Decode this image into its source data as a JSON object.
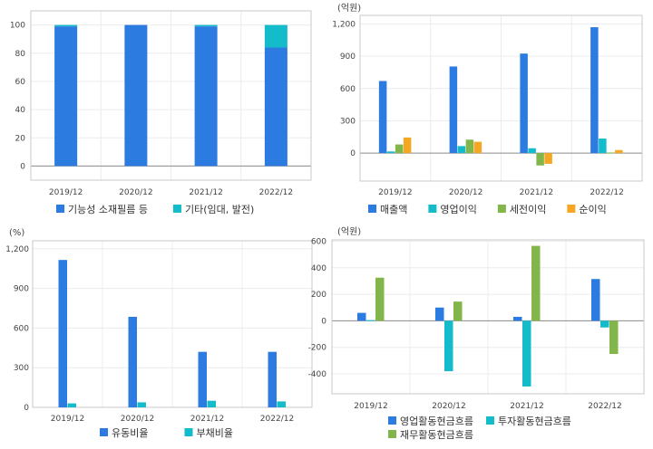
{
  "colors": {
    "blue": "#2b7be0",
    "teal": "#14bccb",
    "green": "#82b64a",
    "orange": "#f5a623"
  },
  "chart_data": [
    {
      "id": "revenue-mix",
      "type": "bar",
      "stacked": true,
      "unit": "",
      "categories": [
        "2019/12",
        "2020/12",
        "2021/12",
        "2022/12"
      ],
      "yticks": [
        0,
        20,
        40,
        60,
        80,
        100
      ],
      "ylim": [
        -10,
        110
      ],
      "series": [
        {
          "name": "기능성 소재필름 등",
          "color": "#2b7be0",
          "values": [
            99,
            100,
            99,
            84
          ]
        },
        {
          "name": "기타(임대, 발전)",
          "color": "#14bccb",
          "values": [
            1,
            0,
            1,
            16
          ]
        }
      ]
    },
    {
      "id": "income",
      "type": "bar",
      "stacked": false,
      "unit": "(억원)",
      "categories": [
        "2019/12",
        "2020/12",
        "2021/12",
        "2022/12"
      ],
      "yticks": [
        0,
        300,
        600,
        900,
        1200
      ],
      "ylim": [
        -260,
        1280
      ],
      "series": [
        {
          "name": "매출액",
          "color": "#2b7be0",
          "values": [
            670,
            805,
            925,
            1170
          ]
        },
        {
          "name": "영업이익",
          "color": "#14bccb",
          "values": [
            15,
            65,
            45,
            135
          ]
        },
        {
          "name": "세전이익",
          "color": "#82b64a",
          "values": [
            80,
            125,
            -115,
            5
          ]
        },
        {
          "name": "순이익",
          "color": "#f5a623",
          "values": [
            145,
            105,
            -100,
            28
          ]
        }
      ]
    },
    {
      "id": "ratios",
      "type": "bar",
      "stacked": false,
      "unit": "(%)",
      "categories": [
        "2019/12",
        "2020/12",
        "2021/12",
        "2022/12"
      ],
      "yticks": [
        0,
        300,
        600,
        900,
        1200
      ],
      "ylim": [
        0,
        1260
      ],
      "series": [
        {
          "name": "유동비율",
          "color": "#2b7be0",
          "values": [
            1115,
            685,
            420,
            420
          ]
        },
        {
          "name": "부채비율",
          "color": "#14bccb",
          "values": [
            30,
            38,
            50,
            45
          ]
        }
      ]
    },
    {
      "id": "cashflow",
      "type": "bar",
      "stacked": false,
      "unit": "(억원)",
      "categories": [
        "2019/12",
        "2020/12",
        "2021/12",
        "2022/12"
      ],
      "yticks": [
        -400,
        -200,
        0,
        200,
        400,
        600
      ],
      "ylim": [
        -550,
        610
      ],
      "series": [
        {
          "name": "영업활동현금흐름",
          "color": "#2b7be0",
          "values": [
            60,
            100,
            30,
            315
          ]
        },
        {
          "name": "투자활동현금흐름",
          "color": "#14bccb",
          "values": [
            5,
            -380,
            -495,
            -50
          ]
        },
        {
          "name": "재무활동현금흐름",
          "color": "#82b64a",
          "values": [
            325,
            145,
            565,
            -250
          ]
        }
      ]
    }
  ]
}
